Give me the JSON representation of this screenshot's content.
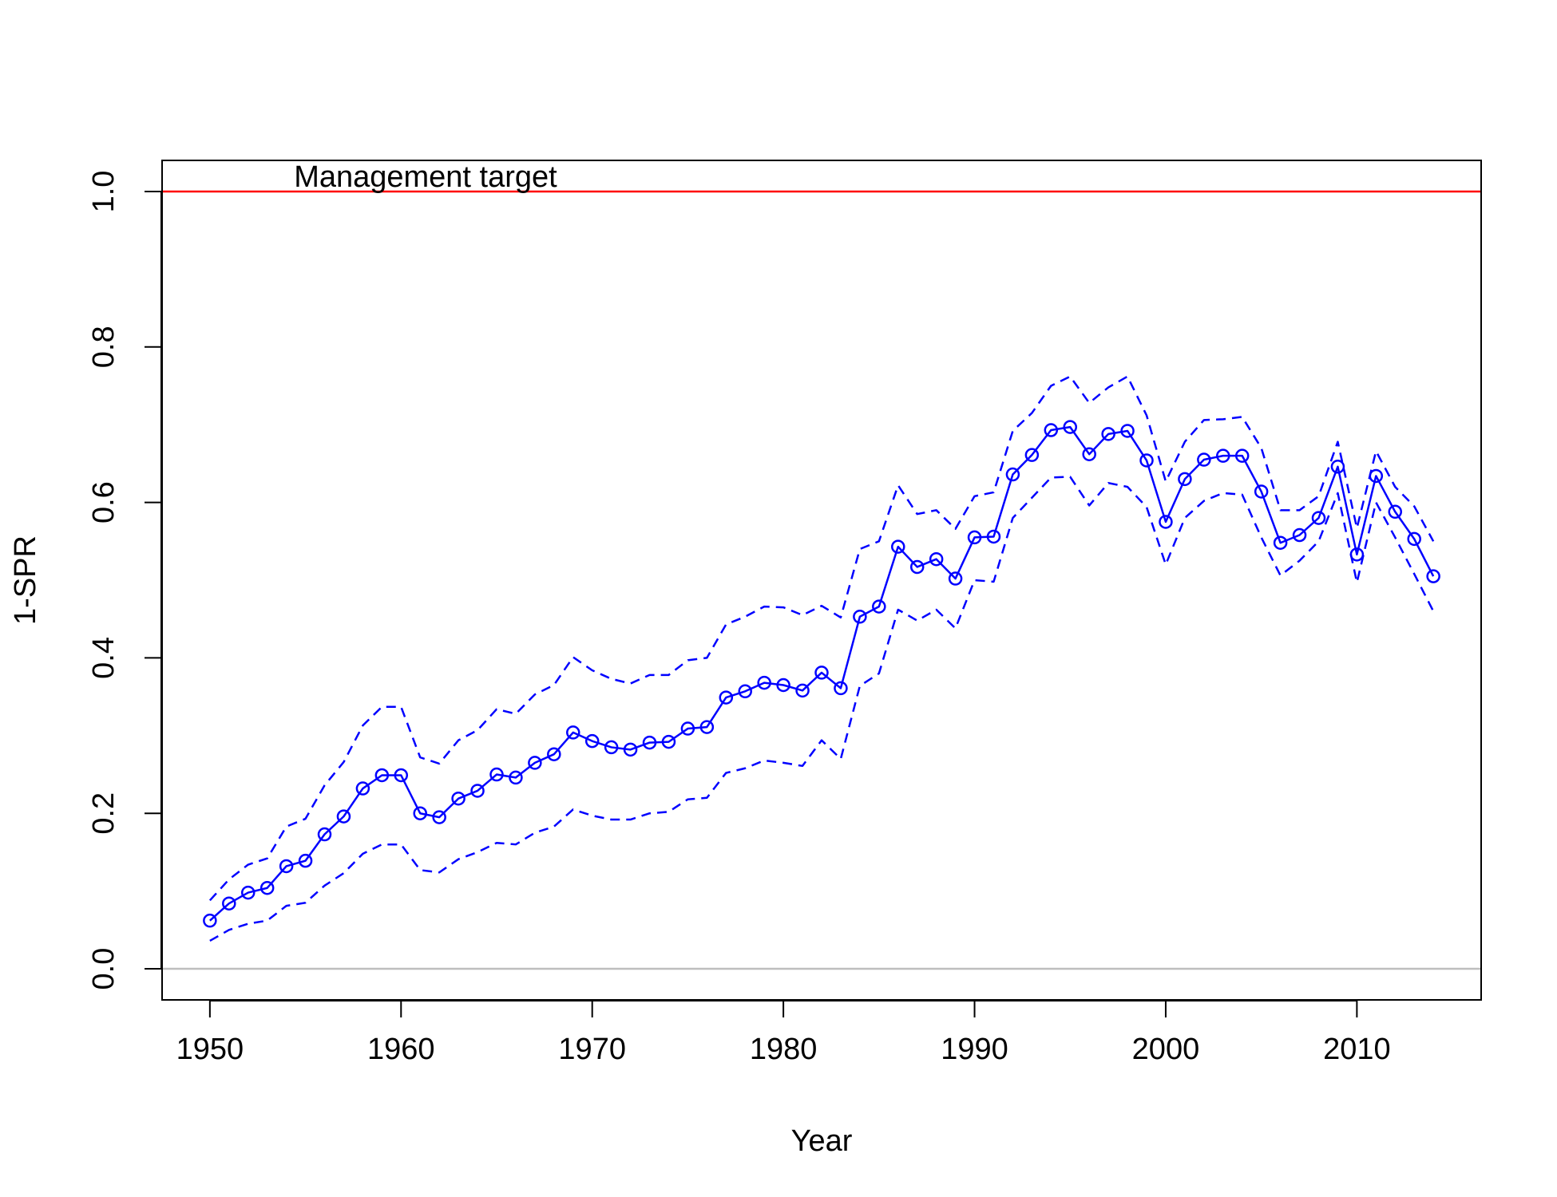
{
  "chart_data": {
    "type": "line",
    "xlabel": "Year",
    "ylabel": "1-SPR",
    "xlim": [
      1947.5,
      2016.5
    ],
    "ylim": [
      -0.04,
      1.04
    ],
    "x_ticks": [
      1950,
      1960,
      1970,
      1980,
      1990,
      2000,
      2010
    ],
    "y_ticks": [
      0.0,
      0.2,
      0.4,
      0.6,
      0.8,
      1.0
    ],
    "y_tick_labels": [
      "0.0",
      "0.2",
      "0.4",
      "0.6",
      "0.8",
      "1.0"
    ],
    "grid": false,
    "reference_lines": [
      {
        "y": 1.0,
        "color": "#ff0000",
        "label": "Management target"
      },
      {
        "y": 0.0,
        "color": "#bebebe",
        "label": ""
      }
    ],
    "colors": {
      "series": "#0000ff",
      "frame": "#000000"
    },
    "x": [
      1950,
      1951,
      1952,
      1953,
      1954,
      1955,
      1956,
      1957,
      1958,
      1959,
      1960,
      1961,
      1962,
      1963,
      1964,
      1965,
      1966,
      1967,
      1968,
      1969,
      1970,
      1971,
      1972,
      1973,
      1974,
      1975,
      1976,
      1977,
      1978,
      1979,
      1980,
      1981,
      1982,
      1983,
      1984,
      1985,
      1986,
      1987,
      1988,
      1989,
      1990,
      1991,
      1992,
      1993,
      1994,
      1995,
      1996,
      1997,
      1998,
      1999,
      2000,
      2001,
      2002,
      2003,
      2004,
      2005,
      2006,
      2007,
      2008,
      2009,
      2010,
      2011,
      2012,
      2013,
      2014
    ],
    "series": [
      {
        "role": "estimate",
        "style": "solid-with-circles",
        "values": [
          0.062,
          0.084,
          0.098,
          0.104,
          0.132,
          0.139,
          0.173,
          0.196,
          0.232,
          0.249,
          0.249,
          0.2,
          0.195,
          0.219,
          0.229,
          0.25,
          0.246,
          0.265,
          0.276,
          0.304,
          0.293,
          0.285,
          0.282,
          0.291,
          0.292,
          0.309,
          0.311,
          0.349,
          0.357,
          0.368,
          0.365,
          0.358,
          0.381,
          0.361,
          0.453,
          0.466,
          0.543,
          0.517,
          0.527,
          0.502,
          0.555,
          0.556,
          0.636,
          0.661,
          0.693,
          0.697,
          0.662,
          0.688,
          0.692,
          0.654,
          0.575,
          0.63,
          0.655,
          0.66,
          0.66,
          0.614,
          0.548,
          0.558,
          0.58,
          0.646,
          0.533,
          0.634,
          0.588,
          0.553,
          0.505
        ]
      },
      {
        "role": "upper",
        "style": "dashed",
        "values": [
          0.088,
          0.115,
          0.134,
          0.142,
          0.183,
          0.193,
          0.236,
          0.266,
          0.313,
          0.337,
          0.337,
          0.272,
          0.264,
          0.294,
          0.307,
          0.334,
          0.328,
          0.353,
          0.365,
          0.401,
          0.384,
          0.373,
          0.367,
          0.378,
          0.378,
          0.397,
          0.4,
          0.443,
          0.453,
          0.466,
          0.465,
          0.455,
          0.467,
          0.452,
          0.54,
          0.55,
          0.622,
          0.585,
          0.59,
          0.566,
          0.608,
          0.613,
          0.692,
          0.715,
          0.75,
          0.762,
          0.728,
          0.748,
          0.762,
          0.712,
          0.627,
          0.678,
          0.706,
          0.707,
          0.71,
          0.67,
          0.59,
          0.59,
          0.608,
          0.678,
          0.567,
          0.666,
          0.62,
          0.595,
          0.55
        ]
      },
      {
        "role": "lower",
        "style": "dashed",
        "values": [
          0.036,
          0.05,
          0.058,
          0.062,
          0.081,
          0.085,
          0.107,
          0.123,
          0.148,
          0.16,
          0.16,
          0.127,
          0.124,
          0.141,
          0.15,
          0.162,
          0.16,
          0.175,
          0.183,
          0.205,
          0.197,
          0.192,
          0.192,
          0.2,
          0.202,
          0.218,
          0.22,
          0.252,
          0.258,
          0.268,
          0.265,
          0.261,
          0.294,
          0.27,
          0.364,
          0.38,
          0.462,
          0.448,
          0.462,
          0.438,
          0.5,
          0.498,
          0.58,
          0.606,
          0.632,
          0.633,
          0.596,
          0.625,
          0.62,
          0.594,
          0.52,
          0.58,
          0.602,
          0.612,
          0.61,
          0.555,
          0.506,
          0.525,
          0.55,
          0.612,
          0.497,
          0.6,
          0.555,
          0.508,
          0.46
        ]
      }
    ]
  }
}
